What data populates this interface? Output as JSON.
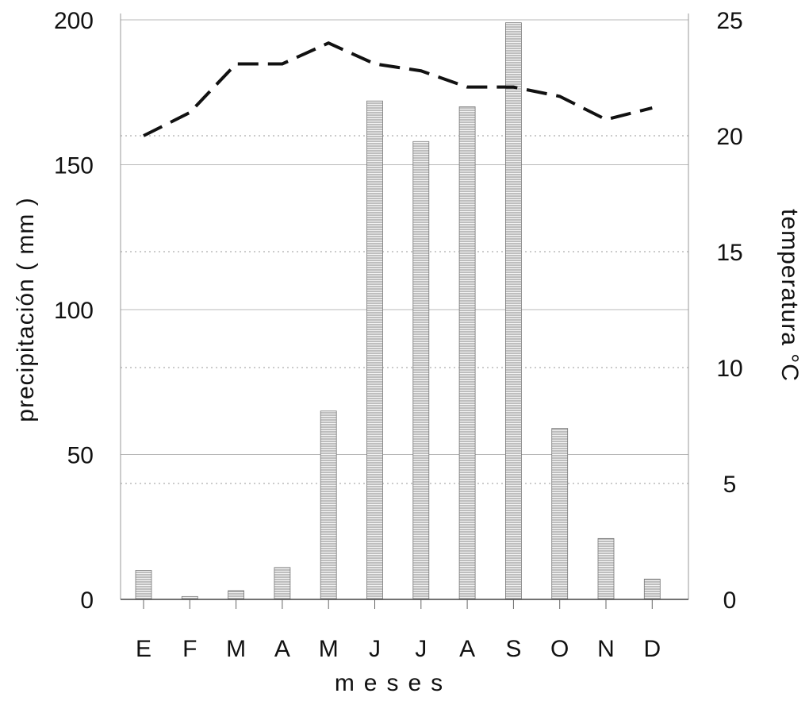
{
  "chart_data": {
    "type": "bar",
    "categories": [
      "E",
      "F",
      "M",
      "A",
      "M",
      "J",
      "J",
      "A",
      "S",
      "O",
      "N",
      "D"
    ],
    "series": [
      {
        "axis": "left",
        "type": "bar",
        "values": [
          10,
          1,
          3,
          11,
          65,
          172,
          158,
          170,
          199,
          59,
          21,
          7
        ]
      },
      {
        "axis": "right",
        "type": "line",
        "line_style": "dashed",
        "values": [
          20.0,
          21.0,
          23.1,
          23.1,
          24.0,
          23.1,
          22.8,
          22.1,
          22.1,
          21.7,
          20.7,
          21.2
        ]
      }
    ],
    "xlabel": "meses",
    "ylabel": "precipitación ( mm )",
    "y2label": "temperatura  °C",
    "ylim": [
      0,
      200
    ],
    "y2lim": [
      0,
      25
    ],
    "yticks": [
      0,
      50,
      100,
      150,
      200
    ],
    "y2ticks": [
      0,
      5,
      10,
      15,
      20,
      25
    ],
    "grid": true,
    "legend": "none"
  }
}
